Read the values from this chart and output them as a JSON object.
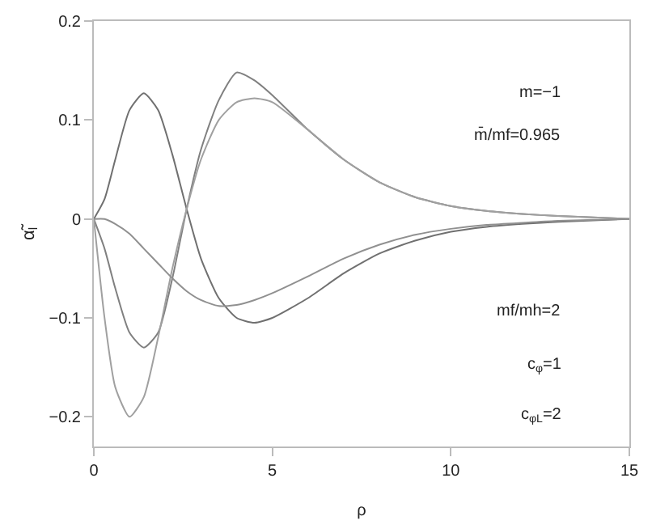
{
  "chart_data": {
    "type": "line",
    "xlabel": "ρ",
    "ylabel": "α̃$_{l}$",
    "x": [
      0,
      0.3,
      0.6,
      1.0,
      1.4,
      1.8,
      2.2,
      2.6,
      3.0,
      3.5,
      4.0,
      4.5,
      5,
      6,
      7,
      8,
      9,
      10,
      11,
      12,
      13,
      15
    ],
    "series": [
      {
        "color": "#707070",
        "values": [
          0,
          0.02,
          0.06,
          0.11,
          0.127,
          0.11,
          0.065,
          0.01,
          -0.04,
          -0.08,
          -0.1,
          -0.105,
          -0.1,
          -0.08,
          -0.055,
          -0.035,
          -0.022,
          -0.013,
          -0.008,
          -0.005,
          -0.003,
          0
        ]
      },
      {
        "color": "#808080",
        "values": [
          0,
          -0.03,
          -0.07,
          -0.115,
          -0.13,
          -0.115,
          -0.06,
          0.01,
          0.07,
          0.12,
          0.148,
          0.14,
          0.125,
          0.09,
          0.06,
          0.037,
          0.022,
          0.013,
          0.008,
          0.005,
          0.003,
          0
        ]
      },
      {
        "color": "#a0a0a0",
        "values": [
          0,
          -0.1,
          -0.17,
          -0.2,
          -0.18,
          -0.12,
          -0.05,
          0.01,
          0.06,
          0.1,
          0.118,
          0.122,
          0.118,
          0.09,
          0.06,
          0.037,
          0.022,
          0.013,
          0.008,
          0.005,
          0.003,
          0
        ]
      },
      {
        "color": "#909090",
        "values": [
          0,
          0,
          -0.005,
          -0.015,
          -0.03,
          -0.045,
          -0.06,
          -0.073,
          -0.082,
          -0.088,
          -0.087,
          -0.082,
          -0.075,
          -0.058,
          -0.04,
          -0.026,
          -0.016,
          -0.01,
          -0.006,
          -0.004,
          -0.002,
          0
        ]
      }
    ],
    "xlim": [
      0,
      15
    ],
    "xticks": [
      0,
      5,
      10,
      15
    ],
    "ylim": [
      -0.23,
      0.2
    ],
    "yticks": [
      {
        "value": -0.2,
        "label": "−0.2"
      },
      {
        "value": -0.1,
        "label": "−0.1"
      },
      0,
      0.1,
      0.2
    ],
    "marker": "none",
    "line_style": "solid",
    "annotations": [
      "m=−1",
      "m̄/mf=0.965",
      "mf/mh=2",
      "c$_{φ}$=1",
      "c$_{φL}$=2"
    ]
  }
}
